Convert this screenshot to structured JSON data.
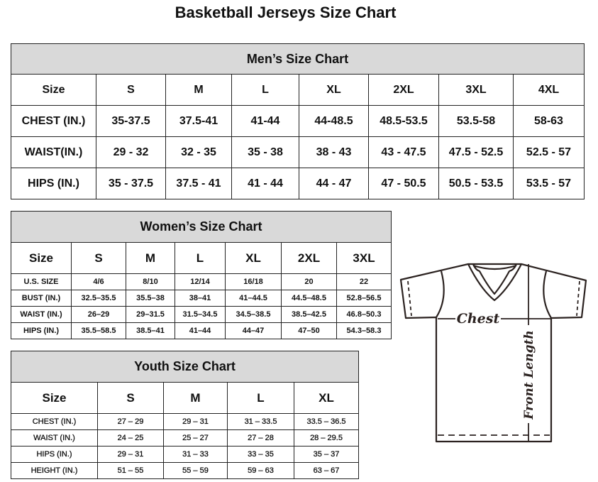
{
  "title": "Basketball Jerseys Size Chart",
  "men": {
    "caption": "Men’s Size Chart",
    "header": [
      "Size",
      "S",
      "M",
      "L",
      "XL",
      "2XL",
      "3XL",
      "4XL"
    ],
    "rows": [
      [
        "CHEST (IN.)",
        "35-37.5",
        "37.5-41",
        "41-44",
        "44-48.5",
        "48.5-53.5",
        "53.5-58",
        "58-63"
      ],
      [
        "WAIST(IN.)",
        "29 - 32",
        "32 - 35",
        "35 - 38",
        "38 - 43",
        "43 - 47.5",
        "47.5 - 52.5",
        "52.5 - 57"
      ],
      [
        "HIPS (IN.)",
        "35 - 37.5",
        "37.5 - 41",
        "41 - 44",
        "44 - 47",
        "47 - 50.5",
        "50.5 - 53.5",
        "53.5 - 57"
      ]
    ]
  },
  "women": {
    "caption": "Women’s Size Chart",
    "header": [
      "Size",
      "S",
      "M",
      "L",
      "XL",
      "2XL",
      "3XL"
    ],
    "rows": [
      [
        "U.S. SIZE",
        "4/6",
        "8/10",
        "12/14",
        "16/18",
        "20",
        "22"
      ],
      [
        "BUST (IN.)",
        "32.5–35.5",
        "35.5–38",
        "38–41",
        "41–44.5",
        "44.5–48.5",
        "52.8–56.5"
      ],
      [
        "WAIST (IN.)",
        "26–29",
        "29–31.5",
        "31.5–34.5",
        "34.5–38.5",
        "38.5–42.5",
        "46.8–50.3"
      ],
      [
        "HIPS (IN.)",
        "35.5–58.5",
        "38.5–41",
        "41–44",
        "44–47",
        "47–50",
        "54.3–58.3"
      ]
    ]
  },
  "youth": {
    "caption": "Youth Size Chart",
    "header": [
      "Size",
      "S",
      "M",
      "L",
      "XL"
    ],
    "rows": [
      [
        "CHEST (IN.)",
        "27 – 29",
        "29 – 31",
        "31 – 33.5",
        "33.5 – 36.5"
      ],
      [
        "WAIST (IN.)",
        "24 – 25",
        "25 – 27",
        "27 – 28",
        "28 – 29.5"
      ],
      [
        "HIPS (IN.)",
        "29 – 31",
        "31 – 33",
        "33 – 35",
        "35 – 37"
      ],
      [
        "HEIGHT (IN.)",
        "51 – 55",
        "55 – 59",
        "59 – 63",
        "63 – 67"
      ]
    ]
  },
  "diagram": {
    "chest_label": "Chest",
    "length_label": "Front Length"
  }
}
